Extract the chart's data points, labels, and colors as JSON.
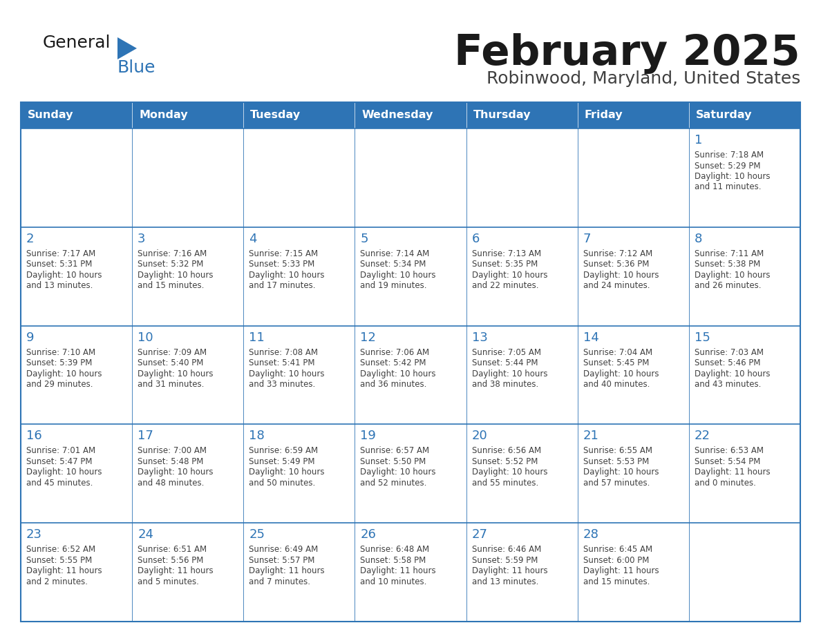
{
  "title": "February 2025",
  "subtitle": "Robinwood, Maryland, United States",
  "header_bg": "#2E74B5",
  "header_text_color": "#FFFFFF",
  "cell_bg": "#FFFFFF",
  "cell_border_color": "#2E74B5",
  "row_divider_color": "#4472C4",
  "day_number_color": "#2E74B5",
  "cell_text_color": "#404040",
  "title_color": "#1a1a1a",
  "subtitle_color": "#404040",
  "weekdays": [
    "Sunday",
    "Monday",
    "Tuesday",
    "Wednesday",
    "Thursday",
    "Friday",
    "Saturday"
  ],
  "calendar": [
    [
      null,
      null,
      null,
      null,
      null,
      null,
      {
        "day": 1,
        "sunrise": "7:18 AM",
        "sunset": "5:29 PM",
        "daylight": "10 hours\nand 11 minutes."
      }
    ],
    [
      {
        "day": 2,
        "sunrise": "7:17 AM",
        "sunset": "5:31 PM",
        "daylight": "10 hours\nand 13 minutes."
      },
      {
        "day": 3,
        "sunrise": "7:16 AM",
        "sunset": "5:32 PM",
        "daylight": "10 hours\nand 15 minutes."
      },
      {
        "day": 4,
        "sunrise": "7:15 AM",
        "sunset": "5:33 PM",
        "daylight": "10 hours\nand 17 minutes."
      },
      {
        "day": 5,
        "sunrise": "7:14 AM",
        "sunset": "5:34 PM",
        "daylight": "10 hours\nand 19 minutes."
      },
      {
        "day": 6,
        "sunrise": "7:13 AM",
        "sunset": "5:35 PM",
        "daylight": "10 hours\nand 22 minutes."
      },
      {
        "day": 7,
        "sunrise": "7:12 AM",
        "sunset": "5:36 PM",
        "daylight": "10 hours\nand 24 minutes."
      },
      {
        "day": 8,
        "sunrise": "7:11 AM",
        "sunset": "5:38 PM",
        "daylight": "10 hours\nand 26 minutes."
      }
    ],
    [
      {
        "day": 9,
        "sunrise": "7:10 AM",
        "sunset": "5:39 PM",
        "daylight": "10 hours\nand 29 minutes."
      },
      {
        "day": 10,
        "sunrise": "7:09 AM",
        "sunset": "5:40 PM",
        "daylight": "10 hours\nand 31 minutes."
      },
      {
        "day": 11,
        "sunrise": "7:08 AM",
        "sunset": "5:41 PM",
        "daylight": "10 hours\nand 33 minutes."
      },
      {
        "day": 12,
        "sunrise": "7:06 AM",
        "sunset": "5:42 PM",
        "daylight": "10 hours\nand 36 minutes."
      },
      {
        "day": 13,
        "sunrise": "7:05 AM",
        "sunset": "5:44 PM",
        "daylight": "10 hours\nand 38 minutes."
      },
      {
        "day": 14,
        "sunrise": "7:04 AM",
        "sunset": "5:45 PM",
        "daylight": "10 hours\nand 40 minutes."
      },
      {
        "day": 15,
        "sunrise": "7:03 AM",
        "sunset": "5:46 PM",
        "daylight": "10 hours\nand 43 minutes."
      }
    ],
    [
      {
        "day": 16,
        "sunrise": "7:01 AM",
        "sunset": "5:47 PM",
        "daylight": "10 hours\nand 45 minutes."
      },
      {
        "day": 17,
        "sunrise": "7:00 AM",
        "sunset": "5:48 PM",
        "daylight": "10 hours\nand 48 minutes."
      },
      {
        "day": 18,
        "sunrise": "6:59 AM",
        "sunset": "5:49 PM",
        "daylight": "10 hours\nand 50 minutes."
      },
      {
        "day": 19,
        "sunrise": "6:57 AM",
        "sunset": "5:50 PM",
        "daylight": "10 hours\nand 52 minutes."
      },
      {
        "day": 20,
        "sunrise": "6:56 AM",
        "sunset": "5:52 PM",
        "daylight": "10 hours\nand 55 minutes."
      },
      {
        "day": 21,
        "sunrise": "6:55 AM",
        "sunset": "5:53 PM",
        "daylight": "10 hours\nand 57 minutes."
      },
      {
        "day": 22,
        "sunrise": "6:53 AM",
        "sunset": "5:54 PM",
        "daylight": "11 hours\nand 0 minutes."
      }
    ],
    [
      {
        "day": 23,
        "sunrise": "6:52 AM",
        "sunset": "5:55 PM",
        "daylight": "11 hours\nand 2 minutes."
      },
      {
        "day": 24,
        "sunrise": "6:51 AM",
        "sunset": "5:56 PM",
        "daylight": "11 hours\nand 5 minutes."
      },
      {
        "day": 25,
        "sunrise": "6:49 AM",
        "sunset": "5:57 PM",
        "daylight": "11 hours\nand 7 minutes."
      },
      {
        "day": 26,
        "sunrise": "6:48 AM",
        "sunset": "5:58 PM",
        "daylight": "11 hours\nand 10 minutes."
      },
      {
        "day": 27,
        "sunrise": "6:46 AM",
        "sunset": "5:59 PM",
        "daylight": "11 hours\nand 13 minutes."
      },
      {
        "day": 28,
        "sunrise": "6:45 AM",
        "sunset": "6:00 PM",
        "daylight": "11 hours\nand 15 minutes."
      },
      null
    ]
  ],
  "logo_color_general": "#1a1a1a",
  "logo_color_blue": "#2E74B5",
  "logo_text_general": "General",
  "logo_text_blue": "Blue"
}
